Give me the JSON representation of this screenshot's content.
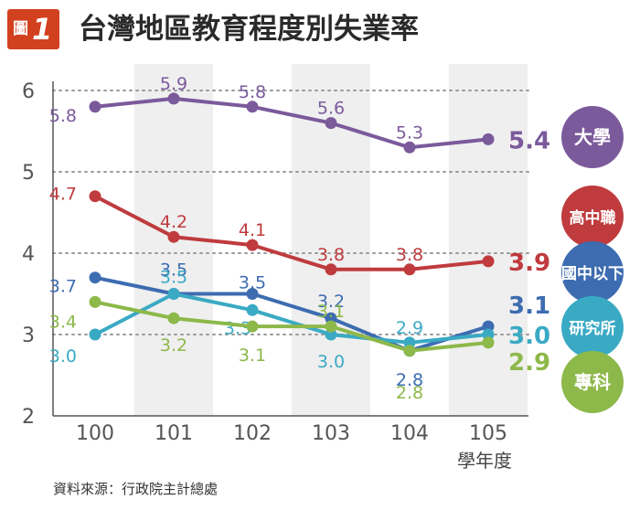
{
  "figure": {
    "badge_word": "圖",
    "badge_number": "1",
    "title": "台灣地區教育程度別失業率",
    "source": "資料來源：行政院主計總處",
    "x_unit": "學年度"
  },
  "colors": {
    "badge": "#d2411f",
    "band": "#efefef",
    "grid": "#9a9a9a",
    "axis": "#555555"
  },
  "chart_data": {
    "type": "line",
    "title": "台灣地區教育程度別失業率",
    "xlabel": "學年度",
    "ylabel": "",
    "x": [
      "100",
      "101",
      "102",
      "103",
      "104",
      "105"
    ],
    "ylim": [
      2,
      6
    ],
    "yticks": [
      2,
      3,
      4,
      5,
      6
    ],
    "grid": "dotted horizontal at 3, 4, 5, 6",
    "legend": "right, circular badges at the end of each line",
    "series": [
      {
        "name": "大學",
        "color": "#7b5a9c",
        "values": [
          5.8,
          5.9,
          5.8,
          5.6,
          5.3,
          5.4
        ],
        "value_labels": [
          "5.8",
          "5.9",
          "5.8",
          "5.6",
          "5.3",
          "5.4"
        ]
      },
      {
        "name": "高中職",
        "color": "#bf3b3e",
        "values": [
          4.7,
          4.2,
          4.1,
          3.8,
          3.8,
          3.9
        ],
        "value_labels": [
          "4.7",
          "4.2",
          "4.1",
          "3.8",
          "3.8",
          "3.9"
        ]
      },
      {
        "name": "國中以下",
        "color": "#3d6cb1",
        "values": [
          3.7,
          3.5,
          3.5,
          3.2,
          2.8,
          3.1
        ],
        "value_labels": [
          "3.7",
          "3.5",
          "3.5",
          "3.2",
          "2.8",
          "3.1"
        ]
      },
      {
        "name": "研究所",
        "color": "#3aaac4",
        "values": [
          3.0,
          3.5,
          3.3,
          3.0,
          2.9,
          3.0
        ],
        "value_labels": [
          "3.0",
          "3.5",
          "3.3",
          "3.0",
          "2.9",
          "3.0"
        ]
      },
      {
        "name": "專科",
        "color": "#8db84a",
        "values": [
          3.4,
          3.2,
          3.1,
          3.1,
          2.8,
          2.9
        ],
        "value_labels": [
          "3.4",
          "3.2",
          "3.1",
          "3.1",
          "2.8",
          "2.9"
        ]
      }
    ]
  }
}
